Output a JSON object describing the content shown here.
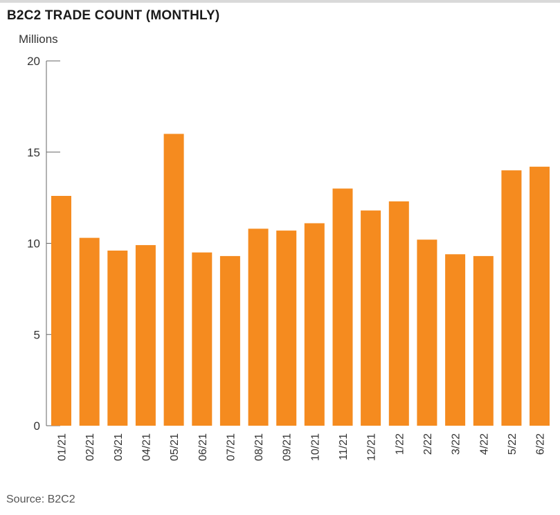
{
  "title": "B2C2 TRADE COUNT (MONTHLY)",
  "source": "Source: B2C2",
  "colors": {
    "bar": "#f58b1f",
    "axis": "#666666"
  },
  "chart_data": {
    "type": "bar",
    "title": "B2C2 TRADE COUNT (MONTHLY)",
    "ylabel": "Millions",
    "xlabel": "",
    "ylim": [
      0,
      20
    ],
    "yticks": [
      0,
      5,
      10,
      15,
      20
    ],
    "grid": false,
    "categories": [
      "01/21",
      "02/21",
      "03/21",
      "04/21",
      "05/21",
      "06/21",
      "07/21",
      "08/21",
      "09/21",
      "10/21",
      "11/21",
      "12/21",
      "1/22",
      "2/22",
      "3/22",
      "4/22",
      "5/22",
      "6/22"
    ],
    "values": [
      12.6,
      10.3,
      9.6,
      9.9,
      16.0,
      9.5,
      9.3,
      10.8,
      10.7,
      11.1,
      13.0,
      11.8,
      12.3,
      10.2,
      9.4,
      9.3,
      14.0,
      14.2
    ]
  }
}
